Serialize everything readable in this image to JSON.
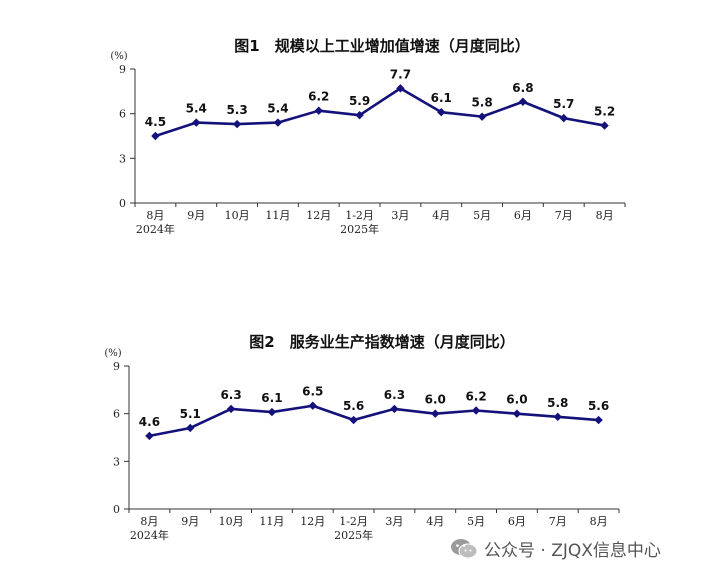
{
  "chart_data": [
    {
      "type": "line",
      "title": "图1　规模以上工业增加值增速（月度同比）",
      "unit": "(%)",
      "categories": [
        "8月",
        "9月",
        "10月",
        "11月",
        "12月",
        "1-2月",
        "3月",
        "4月",
        "5月",
        "6月",
        "7月",
        "8月"
      ],
      "year_labels": [
        {
          "index": 0,
          "text": "2024年"
        },
        {
          "index": 5,
          "text": "2025年"
        }
      ],
      "values": [
        4.5,
        5.4,
        5.3,
        5.4,
        6.2,
        5.9,
        7.7,
        6.1,
        5.8,
        6.8,
        5.7,
        5.2
      ],
      "data_labels": [
        "4.5",
        "5.4",
        "5.3",
        "5.4",
        "6.2",
        "5.9",
        "7.7",
        "6.1",
        "5.8",
        "6.8",
        "5.7",
        "5.2"
      ],
      "ylim": [
        0,
        9
      ],
      "yticks": [
        "0",
        "3",
        "6",
        "9"
      ],
      "grid": false,
      "color": "#14127a"
    },
    {
      "type": "line",
      "title": "图2　服务业生产指数增速（月度同比）",
      "unit": "(%)",
      "categories": [
        "8月",
        "9月",
        "10月",
        "11月",
        "12月",
        "1-2月",
        "3月",
        "4月",
        "5月",
        "6月",
        "7月",
        "8月"
      ],
      "year_labels": [
        {
          "index": 0,
          "text": "2024年"
        },
        {
          "index": 5,
          "text": "2025年"
        }
      ],
      "values": [
        4.6,
        5.1,
        6.3,
        6.1,
        6.5,
        5.6,
        6.3,
        6.0,
        6.2,
        6.0,
        5.8,
        5.6
      ],
      "data_labels": [
        "4.6",
        "5.1",
        "6.3",
        "6.1",
        "6.5",
        "5.6",
        "6.3",
        "6.0",
        "6.2",
        "6.0",
        "5.8",
        "5.6"
      ],
      "ylim": [
        0,
        9
      ],
      "yticks": [
        "0",
        "3",
        "6",
        "9"
      ],
      "grid": false,
      "color": "#14127a"
    }
  ],
  "watermark": {
    "text": "公众号 · ZJQX信息中心",
    "icon": "wechat-icon"
  }
}
